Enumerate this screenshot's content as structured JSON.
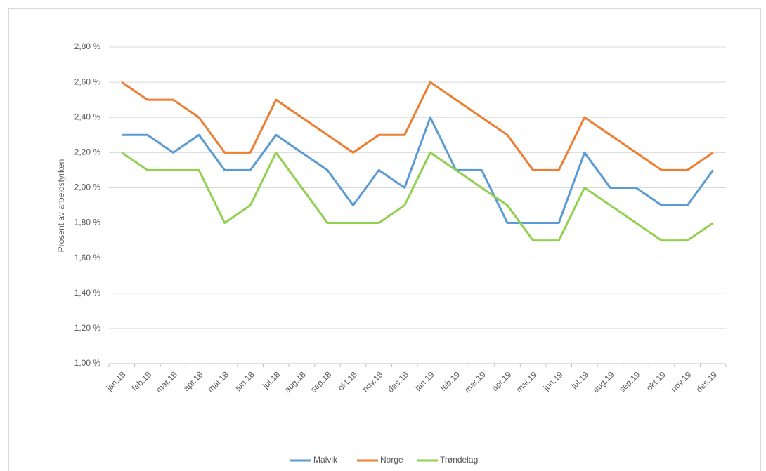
{
  "chart_data": {
    "type": "line",
    "y_label": "Prosent av arbeidstyrken",
    "categories": [
      "jan.18",
      "feb.18",
      "mar.18",
      "apr.18",
      "mai.18",
      "jun.18",
      "jul.18",
      "aug.18",
      "sep.18",
      "okt.18",
      "nov.18",
      "des.18",
      "jan.19",
      "feb.19",
      "mar.19",
      "apr.19",
      "mai.19",
      "jun.19",
      "jul.19",
      "aug.19",
      "sep.19",
      "okt.19",
      "nov.19",
      "des.19"
    ],
    "series": [
      {
        "name": "Malvik",
        "color": "#5b9bd5",
        "values": [
          2.3,
          2.3,
          2.2,
          2.3,
          2.1,
          2.1,
          2.3,
          2.2,
          2.1,
          1.9,
          2.1,
          2.0,
          2.4,
          2.1,
          2.1,
          1.8,
          1.8,
          1.8,
          2.2,
          2.0,
          2.0,
          1.9,
          1.9,
          2.1
        ]
      },
      {
        "name": "Norge",
        "color": "#ed7d31",
        "values": [
          2.6,
          2.5,
          2.5,
          2.4,
          2.2,
          2.2,
          2.5,
          2.4,
          2.3,
          2.2,
          2.3,
          2.3,
          2.6,
          2.5,
          2.4,
          2.3,
          2.1,
          2.1,
          2.4,
          2.3,
          2.2,
          2.1,
          2.1,
          2.2
        ]
      },
      {
        "name": "Trøndelag",
        "color": "#92d050",
        "values": [
          2.2,
          2.1,
          2.1,
          2.1,
          1.8,
          1.9,
          2.2,
          2.0,
          1.8,
          1.8,
          1.8,
          1.9,
          2.2,
          2.1,
          2.0,
          1.9,
          1.7,
          1.7,
          2.0,
          1.9,
          1.8,
          1.7,
          1.7,
          1.8
        ]
      }
    ],
    "ylim": [
      1.0,
      2.8
    ],
    "yticks": [
      {
        "value": 1.0,
        "label": "1,00 %"
      },
      {
        "value": 1.2,
        "label": "1,20 %"
      },
      {
        "value": 1.4,
        "label": "1,40 %"
      },
      {
        "value": 1.6,
        "label": "1,60 %"
      },
      {
        "value": 1.8,
        "label": "1,80 %"
      },
      {
        "value": 2.0,
        "label": "2,00 %"
      },
      {
        "value": 2.2,
        "label": "2,20 %"
      },
      {
        "value": 2.4,
        "label": "2,40 %"
      },
      {
        "value": 2.6,
        "label": "2,60 %"
      },
      {
        "value": 2.8,
        "label": "2,80 %"
      }
    ],
    "grid": true,
    "legend": "bottom"
  }
}
